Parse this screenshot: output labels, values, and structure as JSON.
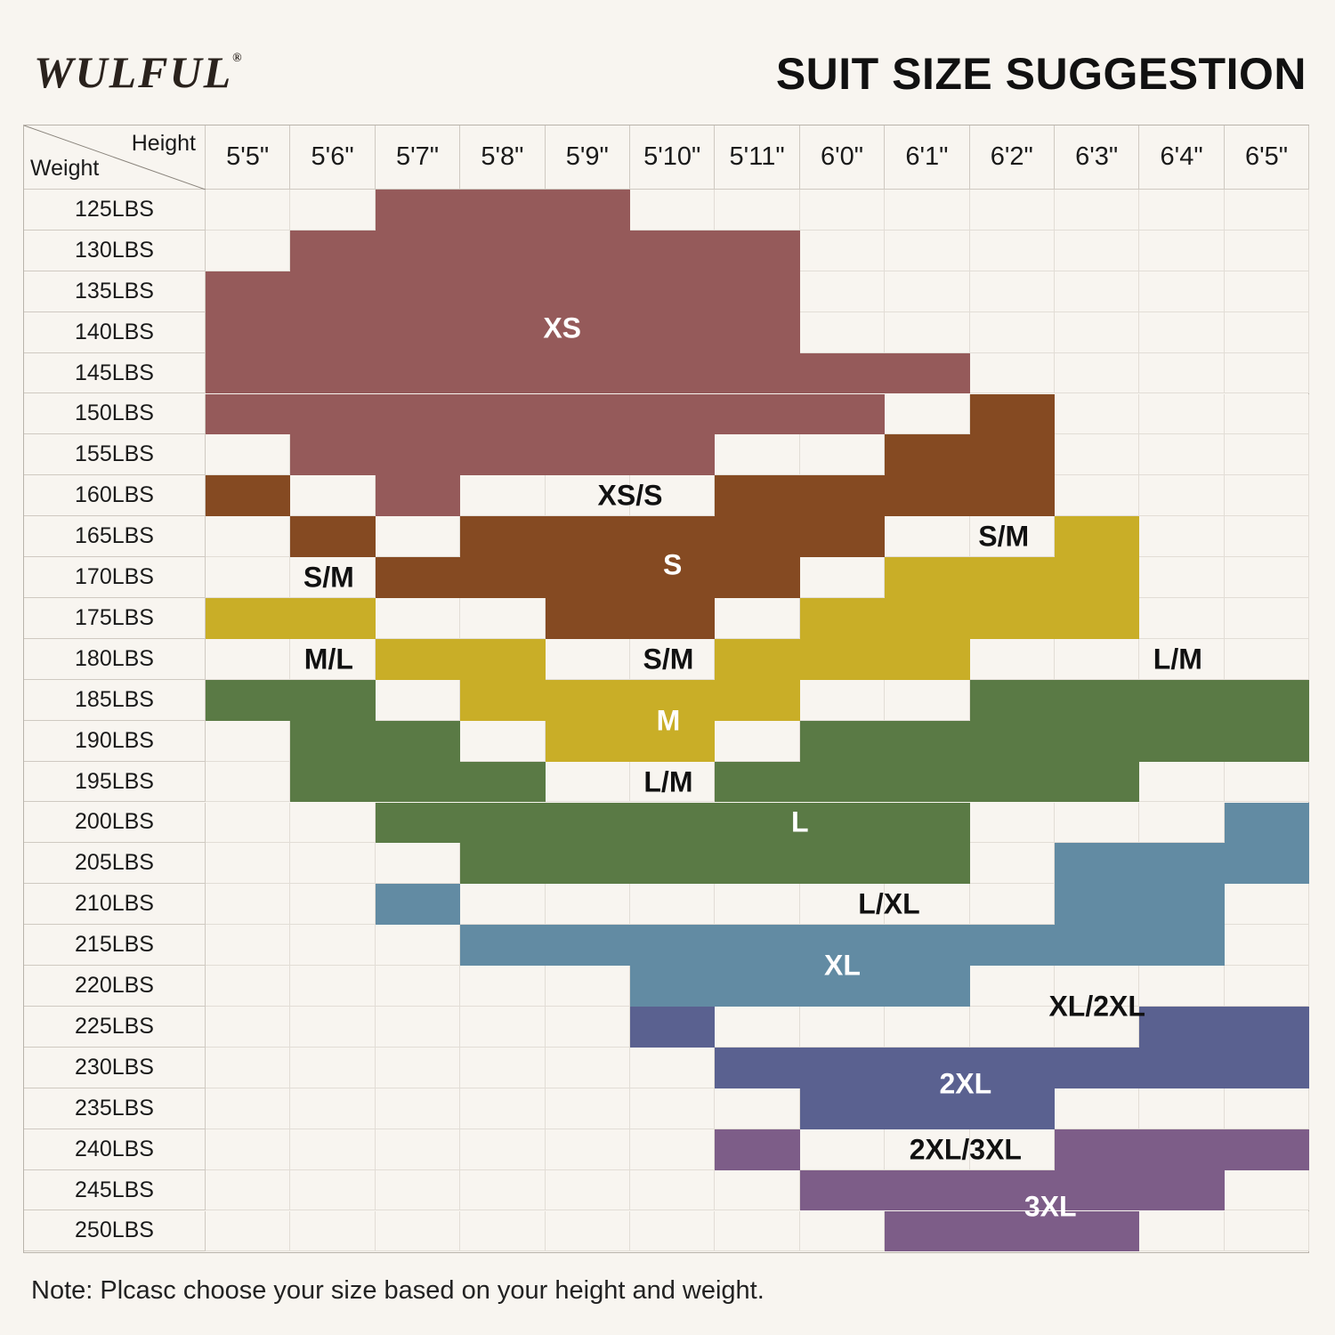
{
  "brand": {
    "logo_text": "WULFUL",
    "registered": "®"
  },
  "title": "SUIT SIZE SUGGESTION",
  "note": "Note: Plcasc choose your size based on your height and weight.",
  "chart_data": {
    "type": "heatmap",
    "title": "SUIT SIZE SUGGESTION",
    "xlabel": "Height",
    "ylabel": "Weight",
    "columns": [
      "5'5\"",
      "5'6\"",
      "5'7\"",
      "5'8\"",
      "5'9\"",
      "5'10\"",
      "5'11\"",
      "6'0\"",
      "6'1\"",
      "6'2\"",
      "6'3\"",
      "6'4\"",
      "6'5\""
    ],
    "rows": [
      "125LBS",
      "130LBS",
      "135LBS",
      "140LBS",
      "145LBS",
      "150LBS",
      "155LBS",
      "160LBS",
      "165LBS",
      "170LBS",
      "175LBS",
      "180LBS",
      "185LBS",
      "190LBS",
      "195LBS",
      "200LBS",
      "205LBS",
      "210LBS",
      "215LBS",
      "220LBS",
      "225LBS",
      "230LBS",
      "235LBS",
      "240LBS",
      "245LBS",
      "250LBS"
    ],
    "sizes": {
      "X": {
        "name": "XS",
        "color": "#955a5a"
      },
      "S": {
        "name": "S",
        "color": "#854a22"
      },
      "M": {
        "name": "M",
        "color": "#c9ae27"
      },
      "L": {
        "name": "L",
        "color": "#5a7a45"
      },
      "B": {
        "name": "XL",
        "color": "#628ba3"
      },
      "N": {
        "name": "2XL",
        "color": "#5a6190"
      },
      "P": {
        "name": "3XL",
        "color": "#7d5d88"
      }
    },
    "grid": [
      "..XXX........",
      ".XXXXXX......",
      "XXXXXXX......",
      "XXXXXXX......",
      "XXXXXXXXX....",
      "XXXXXXXX.S...",
      ".XXXXX..SS...",
      "S.X...SSSS...",
      ".S.SSSSS..M..",
      "..SSSSS.MMM..",
      "MM..SS.MMMM..",
      "..MM..MMM....",
      "LL.MMMM..LLLL",
      ".LL.MM.LLLLLL",
      ".LLL..LLLLL..",
      "..LLLLLLL...B",
      "...LLLLLL.BBB",
      "..B.......BB.",
      "...BBBBBBBBB.",
      ".....BBBB....",
      ".....N.....NN",
      "......NNNNNNN",
      ".......NNN...",
      "......P...PPP",
      ".......PPPPP.",
      "........PPP.."
    ],
    "labels": [
      "XS",
      "XS/S",
      "S",
      "S/M",
      "S/M",
      "M/L",
      "S/M",
      "L/M",
      "M",
      "L/M",
      "L",
      "L/XL",
      "XL",
      "XL/2XL",
      "2XL",
      "2XL/3XL",
      "3XL"
    ],
    "text_colors": {
      "on_color": "#ffffff",
      "on_blank": "#111111"
    }
  }
}
